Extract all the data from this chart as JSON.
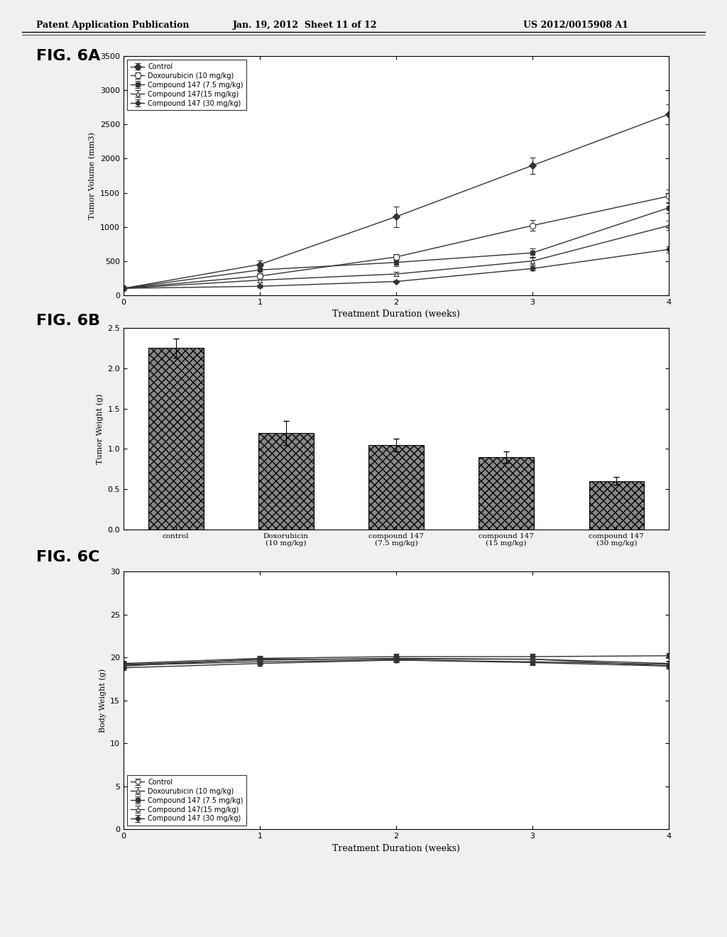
{
  "header_left": "Patent Application Publication",
  "header_center": "Jan. 19, 2012  Sheet 11 of 12",
  "header_right": "US 2012/0015908 A1",
  "fig6a_label": "FIG. 6A",
  "fig6b_label": "FIG. 6B",
  "fig6c_label": "FIG. 6C",
  "fig6a": {
    "xlabel": "Treatment Duration (weeks)",
    "ylabel": "Tumor Volume (mm3)",
    "xlim": [
      0,
      4
    ],
    "ylim": [
      0,
      3500
    ],
    "xticks": [
      0,
      1,
      2,
      3,
      4
    ],
    "yticks": [
      0,
      500,
      1000,
      1500,
      2000,
      2500,
      3000,
      3500
    ],
    "series": [
      {
        "label": "Control",
        "x": [
          0,
          1,
          2,
          3,
          4
        ],
        "y": [
          100,
          450,
          1150,
          1900,
          2650
        ],
        "yerr": [
          10,
          60,
          150,
          120,
          150
        ],
        "color": "#333333",
        "marker": "D",
        "markersize": 5,
        "filled": true,
        "linestyle": "-"
      },
      {
        "label": "Doxourubicin (10 mg/kg)",
        "x": [
          0,
          1,
          2,
          3,
          4
        ],
        "y": [
          100,
          280,
          560,
          1020,
          1450
        ],
        "yerr": [
          10,
          30,
          40,
          80,
          100
        ],
        "color": "#333333",
        "marker": "o",
        "markersize": 6,
        "filled": false,
        "linestyle": "-"
      },
      {
        "label": "Compound 147 (7.5 mg/kg)",
        "x": [
          0,
          1,
          2,
          3,
          4
        ],
        "y": [
          100,
          370,
          480,
          620,
          1280
        ],
        "yerr": [
          10,
          50,
          60,
          60,
          80
        ],
        "color": "#333333",
        "marker": "s",
        "markersize": 5,
        "filled": true,
        "linestyle": "-"
      },
      {
        "label": "Compound 147(15 mg/kg)",
        "x": [
          0,
          1,
          2,
          3,
          4
        ],
        "y": [
          100,
          220,
          310,
          500,
          1020
        ],
        "yerr": [
          10,
          30,
          30,
          50,
          70
        ],
        "color": "#333333",
        "marker": "^",
        "markersize": 5,
        "filled": false,
        "linestyle": "-"
      },
      {
        "label": "Compound 147 (30 mg/kg)",
        "x": [
          0,
          1,
          2,
          3,
          4
        ],
        "y": [
          100,
          130,
          200,
          390,
          670
        ],
        "yerr": [
          10,
          20,
          20,
          30,
          50
        ],
        "color": "#333333",
        "marker": "D",
        "markersize": 4,
        "filled": true,
        "linestyle": "-"
      }
    ]
  },
  "fig6b": {
    "ylabel": "Tumor Weight (g)",
    "ylim": [
      0,
      2.5
    ],
    "yticks": [
      0,
      0.5,
      1.0,
      1.5,
      2.0,
      2.5
    ],
    "categories": [
      "control",
      "Doxorubicin\n(10 mg/kg)",
      "compound 147\n(7.5 mg/kg)",
      "compound 147\n(15 mg/kg)",
      "compound 147\n(30 mg/kg)"
    ],
    "values": [
      2.25,
      1.2,
      1.05,
      0.9,
      0.6
    ],
    "yerr": [
      0.12,
      0.15,
      0.08,
      0.07,
      0.05
    ],
    "bar_color": "#888888",
    "bar_hatch": "xxx"
  },
  "fig6c": {
    "xlabel": "Treatment Duration (weeks)",
    "ylabel": "Body Weight (g)",
    "xlim": [
      0,
      4
    ],
    "ylim": [
      0,
      30
    ],
    "xticks": [
      0,
      1,
      2,
      3,
      4
    ],
    "yticks": [
      0,
      5,
      10,
      15,
      20,
      25,
      30
    ],
    "series": [
      {
        "label": "Control",
        "x": [
          0,
          1,
          2,
          3,
          4
        ],
        "y": [
          19.0,
          19.8,
          19.8,
          19.8,
          19.0
        ],
        "yerr": [
          0.3,
          0.3,
          0.3,
          0.3,
          0.3
        ],
        "color": "#333333",
        "marker": "o",
        "markersize": 5,
        "filled": false,
        "linestyle": "-"
      },
      {
        "label": "Doxourubicin (10 mg/kg)",
        "x": [
          0,
          1,
          2,
          3,
          4
        ],
        "y": [
          19.2,
          19.7,
          19.9,
          19.8,
          19.3
        ],
        "yerr": [
          0.3,
          0.3,
          0.3,
          0.3,
          0.3
        ],
        "color": "#333333",
        "marker": "^",
        "markersize": 5,
        "filled": false,
        "linestyle": "-"
      },
      {
        "label": "Compound 147 (7.5 mg/kg)",
        "x": [
          0,
          1,
          2,
          3,
          4
        ],
        "y": [
          19.3,
          19.9,
          20.1,
          20.1,
          20.2
        ],
        "yerr": [
          0.3,
          0.3,
          0.3,
          0.3,
          0.3
        ],
        "color": "#333333",
        "marker": "s",
        "markersize": 5,
        "filled": true,
        "linestyle": "-"
      },
      {
        "label": "Compound 147(15 mg/kg)",
        "x": [
          0,
          1,
          2,
          3,
          4
        ],
        "y": [
          19.1,
          19.5,
          19.7,
          19.5,
          19.2
        ],
        "yerr": [
          0.3,
          0.3,
          0.3,
          0.3,
          0.3
        ],
        "color": "#333333",
        "marker": "^",
        "markersize": 5,
        "filled": false,
        "linestyle": "-"
      },
      {
        "label": "Compound 147 (30 mg/kg)",
        "x": [
          0,
          1,
          2,
          3,
          4
        ],
        "y": [
          18.8,
          19.3,
          19.7,
          19.4,
          19.0
        ],
        "yerr": [
          0.3,
          0.3,
          0.3,
          0.3,
          0.3
        ],
        "color": "#333333",
        "marker": "D",
        "markersize": 4,
        "filled": true,
        "linestyle": "-"
      }
    ]
  },
  "bg_color": "#ffffff",
  "text_color": "#000000"
}
